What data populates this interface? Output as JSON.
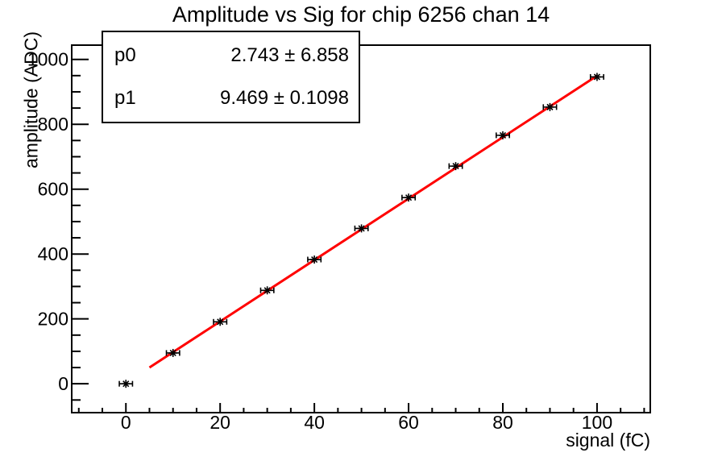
{
  "title": "Amplitude vs Sig for chip 6256 chan 14",
  "stats_box": {
    "rows": [
      {
        "name": "p0",
        "value": "2.743 ± 6.858"
      },
      {
        "name": "p1",
        "value": "9.469 ± 0.1098"
      }
    ]
  },
  "chart_data": {
    "type": "scatter",
    "title": "Amplitude vs Sig for chip 6256 chan 14",
    "xlabel": "signal (fC)",
    "ylabel": "amplitude (ADC)",
    "x": [
      0,
      10,
      20,
      30,
      40,
      50,
      60,
      70,
      80,
      90,
      100
    ],
    "y": [
      0,
      95,
      191,
      288,
      383,
      479,
      574,
      671,
      766,
      853,
      946
    ],
    "x_err": 1.4,
    "xlim": [
      -11.5,
      111.3
    ],
    "ylim": [
      -89,
      1044
    ],
    "x_major_ticks": [
      0,
      20,
      40,
      60,
      80,
      100
    ],
    "x_minor_step": 5,
    "y_major_ticks": [
      0,
      200,
      400,
      600,
      800,
      1000
    ],
    "y_minor_step": 50,
    "grid": false,
    "legend": "none",
    "fit": {
      "type": "linear",
      "p0": 2.743,
      "p0_err": 6.858,
      "p1": 9.469,
      "p1_err": 0.1098,
      "x_start": 5,
      "x_end": 100,
      "color": "#ff0000"
    },
    "marker": {
      "style": "asterisk-with-x-error-bars",
      "color": "#000000"
    },
    "frame_color": "#000000",
    "background": "#ffffff"
  }
}
